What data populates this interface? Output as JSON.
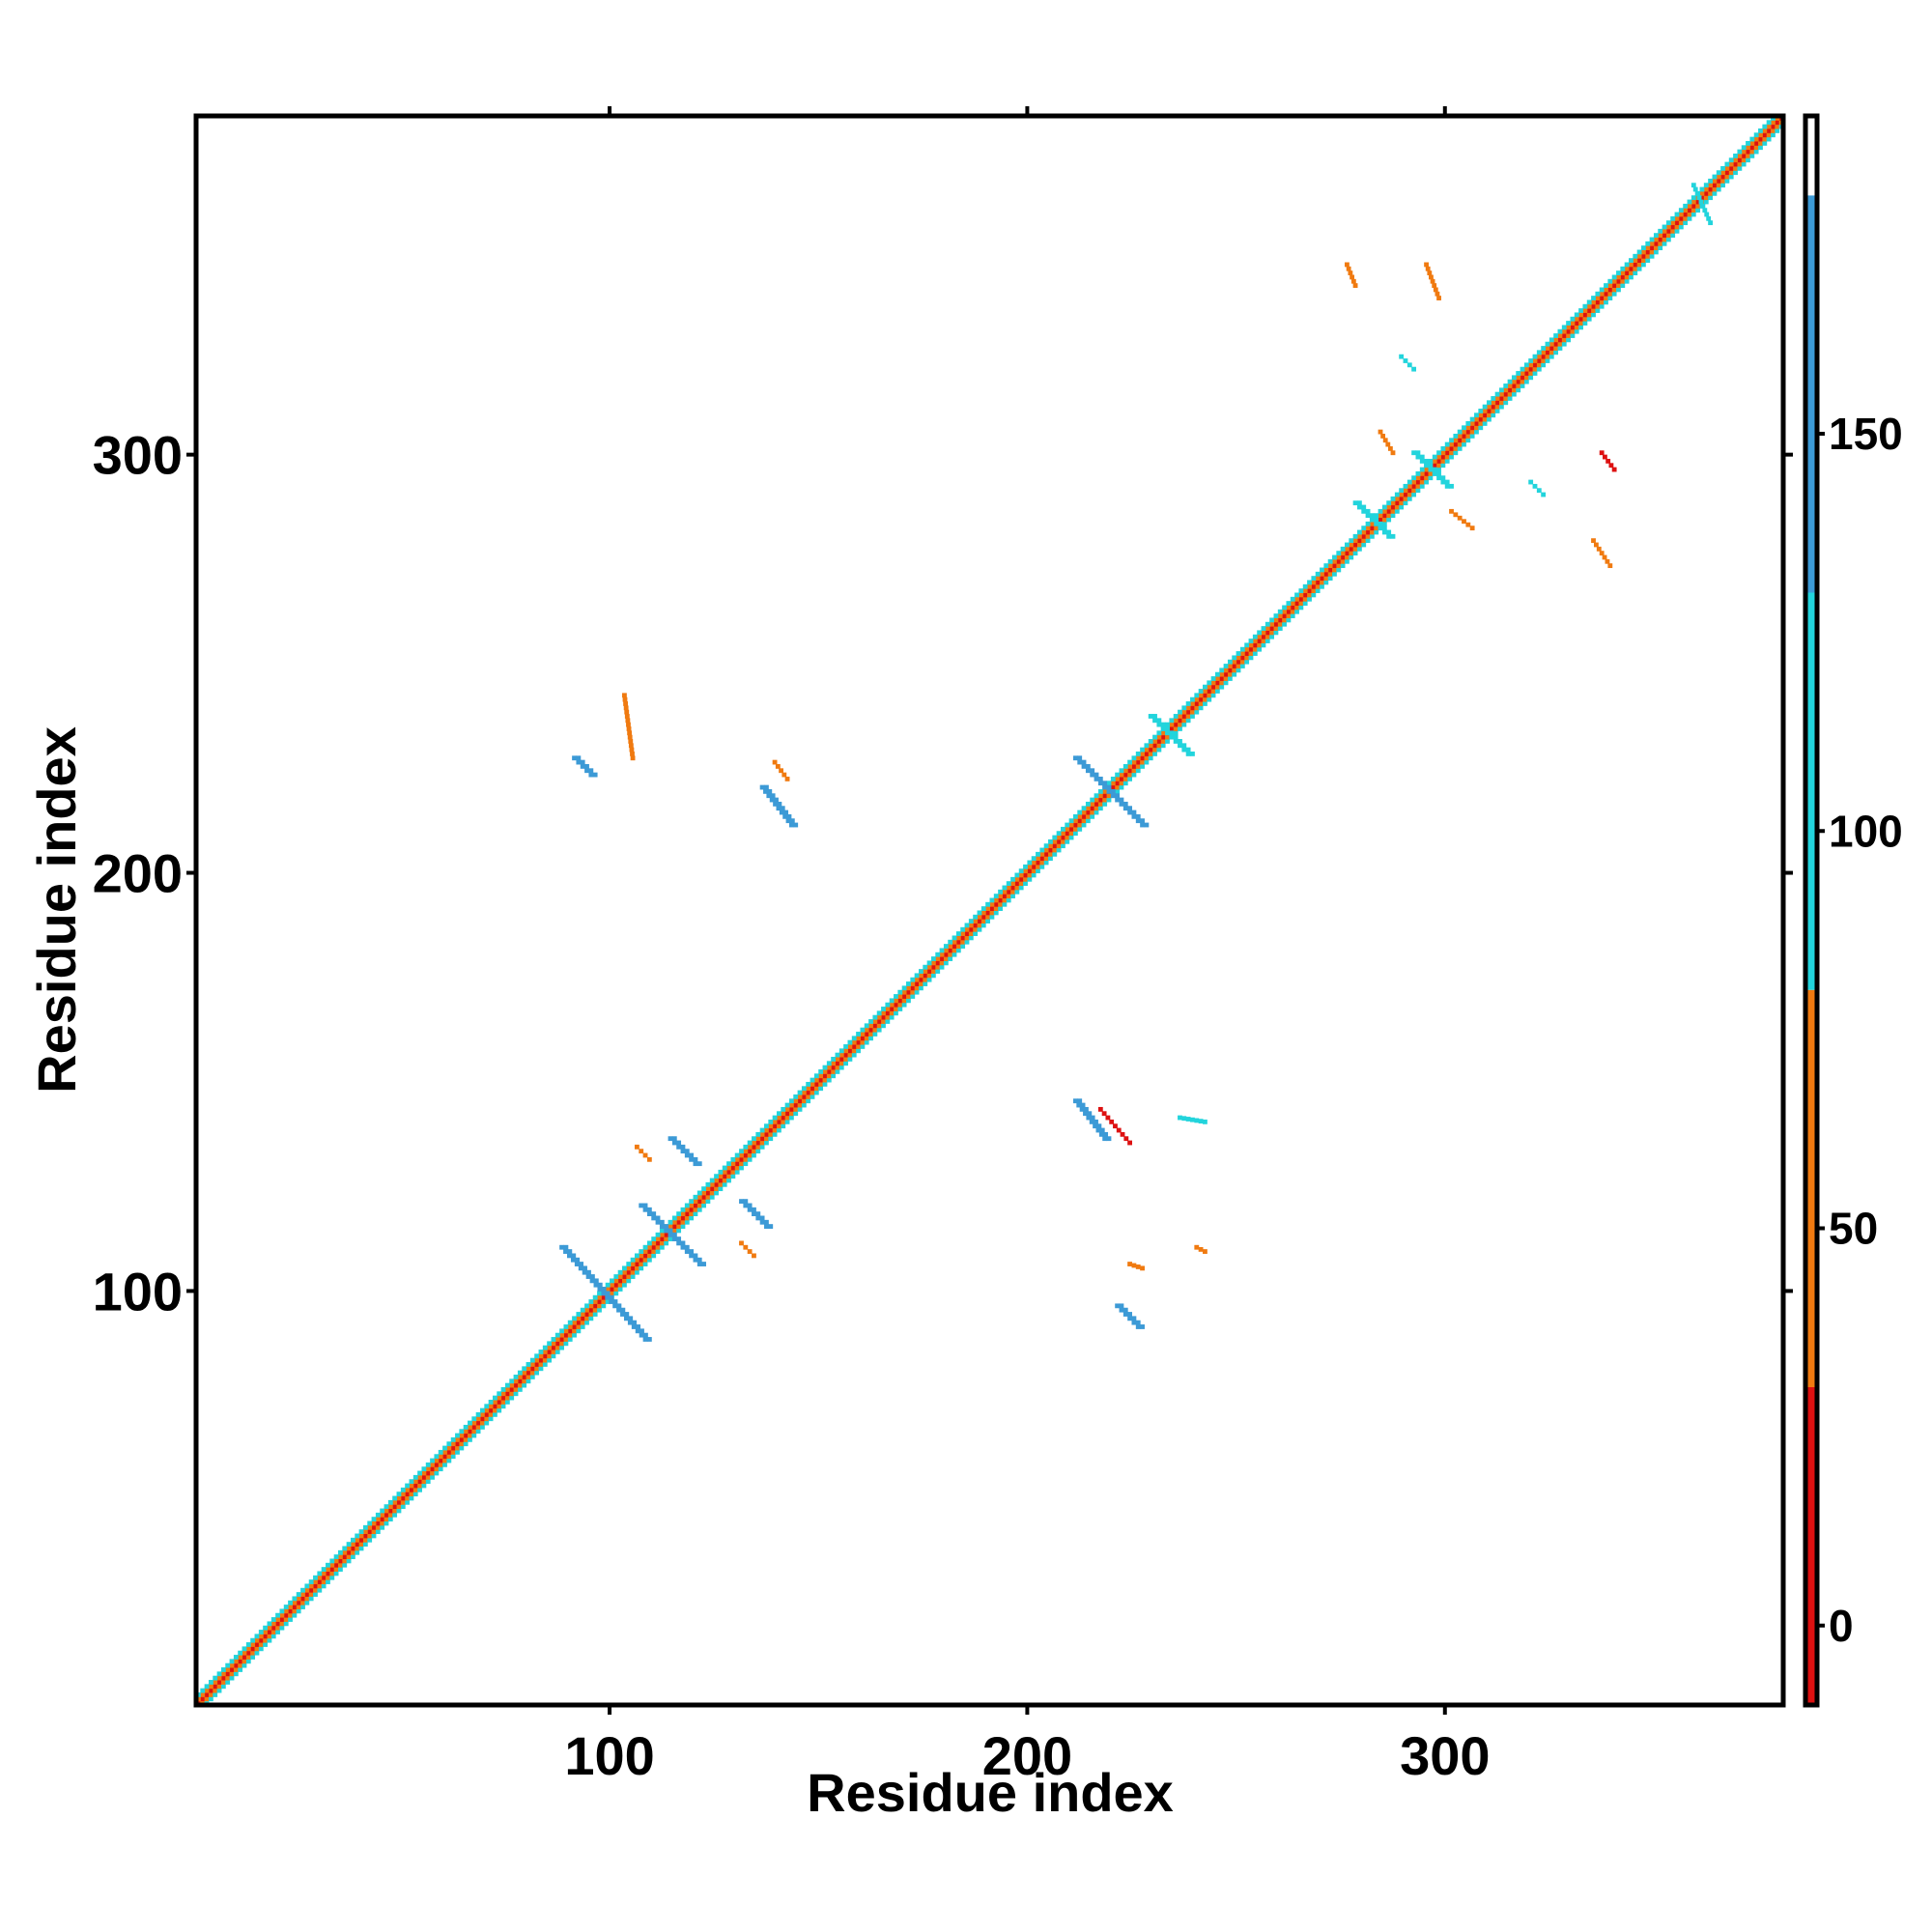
{
  "chart_data": {
    "type": "heatmap",
    "title": "",
    "xlabel": "Residue index",
    "ylabel": "Residue index",
    "xlim": [
      1,
      381
    ],
    "ylim": [
      1,
      381
    ],
    "xticks": [
      100,
      200,
      300
    ],
    "yticks": [
      100,
      200,
      300
    ],
    "grid": false,
    "colorbar": {
      "position": "right",
      "range": [
        -10,
        190
      ],
      "ticks": [
        0,
        50,
        100,
        150
      ],
      "bands": [
        {
          "from": -10,
          "to": 30,
          "color": "#dd1111"
        },
        {
          "from": 30,
          "to": 80,
          "color": "#f07a10"
        },
        {
          "from": 80,
          "to": 130,
          "color": "#22d4dc"
        },
        {
          "from": 130,
          "to": 180,
          "color": "#3c9ad6"
        },
        {
          "from": 180,
          "to": 190,
          "color": "#ffffff"
        }
      ]
    },
    "diagonal_band": {
      "from": 1,
      "to": 381,
      "value_center": 20,
      "value_edge": 60,
      "value_outer": 100
    },
    "off_diagonal_features": [
      {
        "kind": "strand",
        "x": [
          88,
          108
        ],
        "y": [
          110,
          88
        ],
        "value": 150
      },
      {
        "kind": "strand",
        "x": [
          107,
          121
        ],
        "y": [
          120,
          106
        ],
        "value": 150
      },
      {
        "kind": "strand",
        "x": [
          114,
          120
        ],
        "y": [
          136,
          130
        ],
        "value": 150
      },
      {
        "kind": "strand",
        "x": [
          131,
          137
        ],
        "y": [
          121,
          115
        ],
        "value": 150
      },
      {
        "kind": "strand",
        "x": [
          136,
          143
        ],
        "y": [
          220,
          211
        ],
        "value": 150
      },
      {
        "kind": "strand",
        "x": [
          91,
          95
        ],
        "y": [
          227,
          223
        ],
        "value": 150
      },
      {
        "kind": "strand",
        "x": [
          211,
          218
        ],
        "y": [
          145,
          136
        ],
        "value": 150
      },
      {
        "kind": "strand",
        "x": [
          211,
          227
        ],
        "y": [
          227,
          211
        ],
        "value": 150
      },
      {
        "kind": "strand",
        "x": [
          221,
          226
        ],
        "y": [
          96,
          91
        ],
        "value": 150
      },
      {
        "kind": "strand",
        "x": [
          278,
          286
        ],
        "y": [
          288,
          280
        ],
        "value": 110
      },
      {
        "kind": "strand",
        "x": [
          292,
          300
        ],
        "y": [
          300,
          292
        ],
        "value": 110
      },
      {
        "kind": "strand",
        "x": [
          229,
          238
        ],
        "y": [
          237,
          228
        ],
        "value": 110
      },
      {
        "kind": "contact",
        "x": [
          276,
          278
        ],
        "y": [
          345,
          340
        ],
        "value": 60
      },
      {
        "kind": "contact",
        "x": [
          289,
          292
        ],
        "y": [
          323,
          320
        ],
        "value": 110
      },
      {
        "kind": "contact",
        "x": [
          295,
          298
        ],
        "y": [
          345,
          337
        ],
        "value": 60
      },
      {
        "kind": "contact",
        "x": [
          301,
          306
        ],
        "y": [
          286,
          282
        ],
        "value": 60
      },
      {
        "kind": "contact",
        "x": [
          337,
          340
        ],
        "y": [
          300,
          296
        ],
        "value": 20
      },
      {
        "kind": "contact",
        "x": [
          335,
          339
        ],
        "y": [
          279,
          273
        ],
        "value": 60
      },
      {
        "kind": "contact",
        "x": [
          320,
          323
        ],
        "y": [
          293,
          290
        ],
        "value": 110
      },
      {
        "kind": "contact",
        "x": [
          284,
          287
        ],
        "y": [
          305,
          300
        ],
        "value": 60
      },
      {
        "kind": "contact",
        "x": [
          139,
          142
        ],
        "y": [
          226,
          222
        ],
        "value": 60
      },
      {
        "kind": "contact",
        "x": [
          217,
          224
        ],
        "y": [
          143,
          135
        ],
        "value": 20
      },
      {
        "kind": "contact",
        "x": [
          236,
          242
        ],
        "y": [
          141,
          140
        ],
        "value": 110
      },
      {
        "kind": "contact",
        "x": [
          224,
          227
        ],
        "y": [
          106,
          105
        ],
        "value": 60
      },
      {
        "kind": "contact",
        "x": [
          240,
          242
        ],
        "y": [
          110,
          109
        ],
        "value": 60
      },
      {
        "kind": "contact",
        "x": [
          103,
          105
        ],
        "y": [
          242,
          227
        ],
        "value": 60
      },
      {
        "kind": "contact",
        "x": [
          131,
          134
        ],
        "y": [
          111,
          108
        ],
        "value": 60
      },
      {
        "kind": "contact",
        "x": [
          106,
          109
        ],
        "y": [
          134,
          131
        ],
        "value": 60
      },
      {
        "kind": "contact",
        "x": [
          359,
          363
        ],
        "y": [
          364,
          355
        ],
        "value": 110
      }
    ]
  }
}
